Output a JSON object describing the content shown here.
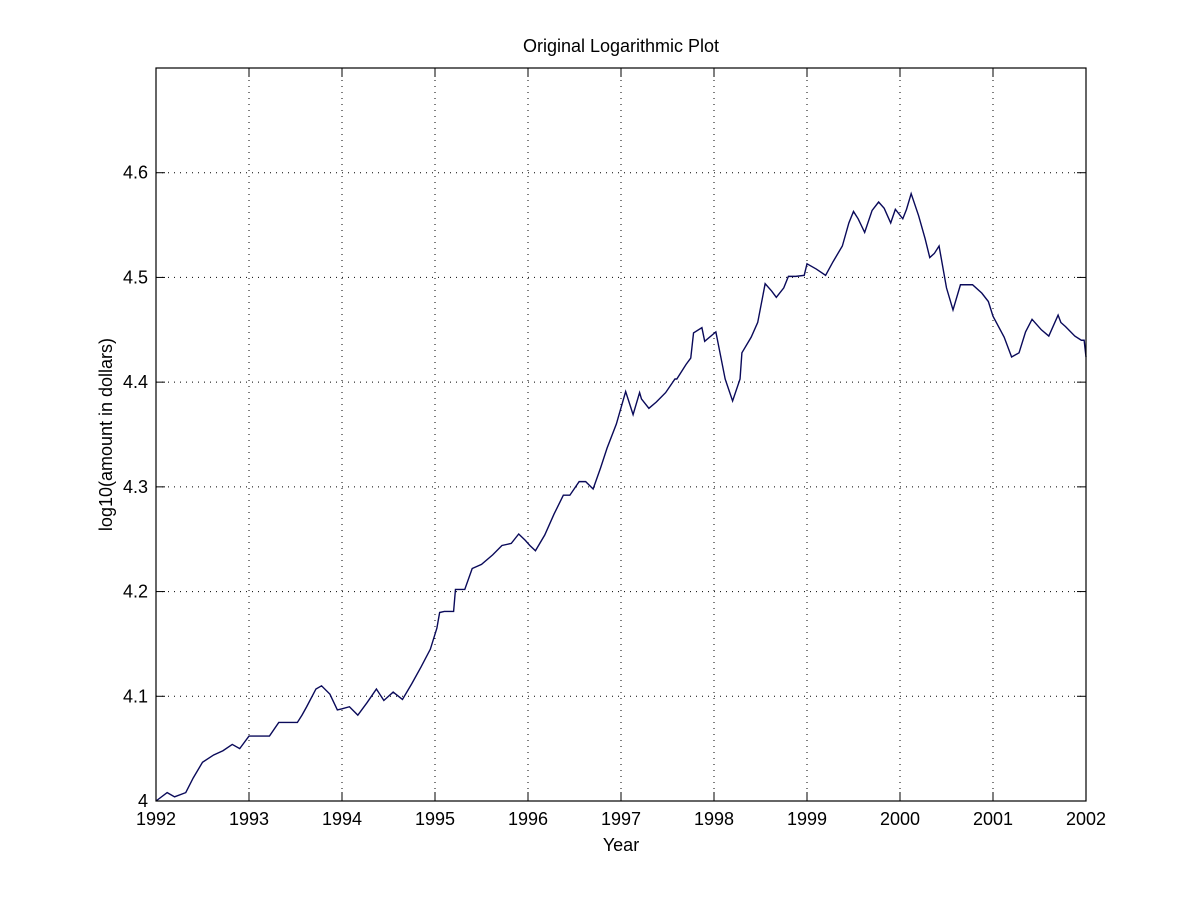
{
  "chart_data": {
    "type": "line",
    "title": "Original Logarithmic Plot",
    "xlabel": "Year",
    "ylabel": "log10(amount in dollars)",
    "xlim": [
      1992,
      2002
    ],
    "ylim": [
      4,
      4.7
    ],
    "xticks": [
      "1992",
      "1993",
      "1994",
      "1995",
      "1996",
      "1997",
      "1998",
      "1999",
      "2000",
      "2001",
      "2002"
    ],
    "yticks": [
      "4",
      "4.1",
      "4.2",
      "4.3",
      "4.4",
      "4.5",
      "4.6"
    ],
    "grid": true,
    "series": [
      {
        "color": "#0a0a5a",
        "x": [
          1992.0,
          1992.12,
          1992.2,
          1992.32,
          1992.4,
          1992.5,
          1992.62,
          1992.72,
          1992.82,
          1992.9,
          1993.0,
          1993.1,
          1993.22,
          1993.32,
          1993.43,
          1993.52,
          1993.57,
          1993.62,
          1993.72,
          1993.78,
          1993.87,
          1993.95,
          1994.0,
          1994.08,
          1994.17,
          1994.27,
          1994.37,
          1994.45,
          1994.55,
          1994.65,
          1994.75,
          1994.85,
          1994.95,
          1995.02,
          1995.05,
          1995.1,
          1995.2,
          1995.22,
          1995.32,
          1995.4,
          1995.5,
          1995.62,
          1995.72,
          1995.82,
          1995.9,
          1995.97,
          1996.02,
          1996.08,
          1996.18,
          1996.28,
          1996.38,
          1996.45,
          1996.55,
          1996.62,
          1996.7,
          1996.78,
          1996.85,
          1996.95,
          1997.05,
          1997.13,
          1997.2,
          1997.22,
          1997.3,
          1997.38,
          1997.48,
          1997.58,
          1997.6,
          1997.7,
          1997.75,
          1997.78,
          1997.87,
          1997.9,
          1998.02,
          1998.12,
          1998.2,
          1998.28,
          1998.3,
          1998.4,
          1998.47,
          1998.55,
          1998.62,
          1998.67,
          1998.75,
          1998.8,
          1998.88,
          1998.97,
          1999.0,
          1999.1,
          1999.2,
          1999.28,
          1999.38,
          1999.45,
          1999.5,
          1999.55,
          1999.62,
          1999.7,
          1999.77,
          1999.83,
          1999.9,
          1999.95,
          2000.03,
          2000.07,
          2000.12,
          2000.2,
          2000.27,
          2000.32,
          2000.37,
          2000.42,
          2000.5,
          2000.57,
          2000.65,
          2000.72,
          2000.78,
          2000.88,
          2000.95,
          2001.0,
          2001.12,
          2001.2,
          2001.28,
          2001.35,
          2001.42,
          2001.47,
          2001.52,
          2001.6,
          2001.7,
          2001.73,
          2001.78,
          2001.88,
          2001.95,
          2001.98,
          2002.0
        ],
        "y": [
          4.0,
          4.008,
          4.004,
          4.008,
          4.022,
          4.037,
          4.044,
          4.048,
          4.054,
          4.05,
          4.062,
          4.062,
          4.062,
          4.075,
          4.075,
          4.075,
          4.082,
          4.09,
          4.107,
          4.11,
          4.102,
          4.087,
          4.088,
          4.09,
          4.082,
          4.094,
          4.107,
          4.096,
          4.104,
          4.097,
          4.112,
          4.128,
          4.145,
          4.165,
          4.18,
          4.181,
          4.181,
          4.202,
          4.202,
          4.222,
          4.226,
          4.235,
          4.244,
          4.246,
          4.255,
          4.249,
          4.244,
          4.239,
          4.254,
          4.274,
          4.292,
          4.292,
          4.305,
          4.305,
          4.298,
          4.318,
          4.337,
          4.36,
          4.391,
          4.369,
          4.39,
          4.384,
          4.375,
          4.381,
          4.39,
          4.403,
          4.403,
          4.417,
          4.423,
          4.447,
          4.452,
          4.439,
          4.448,
          4.403,
          4.382,
          4.403,
          4.428,
          4.443,
          4.457,
          4.494,
          4.487,
          4.481,
          4.49,
          4.501,
          4.501,
          4.502,
          4.513,
          4.508,
          4.502,
          4.515,
          4.53,
          4.552,
          4.563,
          4.556,
          4.543,
          4.564,
          4.572,
          4.566,
          4.552,
          4.565,
          4.556,
          4.565,
          4.58,
          4.559,
          4.537,
          4.519,
          4.523,
          4.53,
          4.49,
          4.469,
          4.493,
          4.493,
          4.493,
          4.485,
          4.477,
          4.463,
          4.443,
          4.424,
          4.428,
          4.448,
          4.46,
          4.455,
          4.45,
          4.444,
          4.464,
          4.457,
          4.453,
          4.444,
          4.44,
          4.44,
          4.424
        ]
      }
    ]
  }
}
